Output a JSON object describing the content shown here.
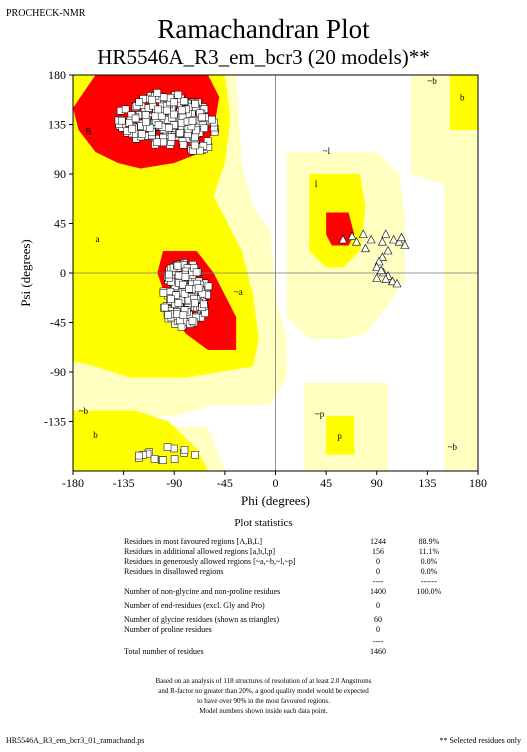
{
  "header_tag": "PROCHECK-NMR",
  "chart_data": {
    "type": "scatter",
    "title": "Ramachandran Plot",
    "subtitle": "HR5546A_R3_em_bcr3 (20 models)**",
    "xlabel": "Phi (degrees)",
    "ylabel": "Psi (degrees)",
    "xlim": [
      -180,
      180
    ],
    "ylim": [
      -180,
      180
    ],
    "xticks": [
      -180,
      -135,
      -90,
      -45,
      0,
      45,
      90,
      135,
      180
    ],
    "yticks": [
      180,
      135,
      90,
      45,
      0,
      -45,
      -90,
      -135
    ],
    "grid": false,
    "colors": {
      "most_favoured": "#ff0000",
      "additional": "#ffff00",
      "generous": "#ffffc0",
      "disallowed": "#ffffff",
      "triangle": "#ffffff"
    },
    "region_labels": [
      {
        "text": "B",
        "x": -169,
        "y": 126
      },
      {
        "text": "~b",
        "x": -60,
        "y": 129
      },
      {
        "text": "~b",
        "x": 135,
        "y": 172
      },
      {
        "text": "b",
        "x": 164,
        "y": 157
      },
      {
        "text": "a",
        "x": -160,
        "y": 28
      },
      {
        "text": "~l",
        "x": 42,
        "y": 108
      },
      {
        "text": "l",
        "x": 35,
        "y": 78
      },
      {
        "text": "~a",
        "x": -37,
        "y": -20
      },
      {
        "text": "~b",
        "x": -175,
        "y": -128
      },
      {
        "text": "b",
        "x": -162,
        "y": -150
      },
      {
        "text": "~p",
        "x": 35,
        "y": -131
      },
      {
        "text": "p",
        "x": 55,
        "y": -151
      },
      {
        "text": "~b",
        "x": 153,
        "y": -161
      }
    ],
    "residue_clusters": [
      {
        "name": "beta",
        "cx": -100,
        "cy": 140,
        "rx": 40,
        "ry": 24,
        "count": 200
      },
      {
        "name": "alpha",
        "cx": -80,
        "cy": -20,
        "rx": 22,
        "ry": 30,
        "count": 180
      },
      {
        "name": "ppII",
        "cx": -70,
        "cy": 128,
        "rx": 18,
        "ry": 18,
        "count": 40
      },
      {
        "name": "lower_beta",
        "cx": -100,
        "cy": -165,
        "rx": 30,
        "ry": 7,
        "count": 14
      }
    ],
    "glycine_points": [
      [
        105,
        30
      ],
      [
        110,
        28
      ],
      [
        98,
        35
      ],
      [
        100,
        20
      ],
      [
        95,
        14
      ],
      [
        92,
        10
      ],
      [
        90,
        5
      ],
      [
        96,
        0
      ],
      [
        100,
        -3
      ],
      [
        104,
        -8
      ],
      [
        108,
        -10
      ],
      [
        90,
        -5
      ],
      [
        112,
        32
      ],
      [
        115,
        25
      ],
      [
        95,
        28
      ],
      [
        60,
        30
      ],
      [
        68,
        33
      ],
      [
        72,
        28
      ],
      [
        78,
        35
      ],
      [
        85,
        30
      ],
      [
        80,
        22
      ],
      [
        94,
        2
      ],
      [
        98,
        -6
      ]
    ]
  },
  "statistics": {
    "title": "Plot statistics",
    "rows": [
      {
        "label": "Residues in most favoured regions  [A,B,L]",
        "value": "1244",
        "pct": "88.9%"
      },
      {
        "label": "Residues in additional allowed regions  [a,b,l,p]",
        "value": "156",
        "pct": "11.1%"
      },
      {
        "label": "Residues in generously allowed regions  [~a,~b,~l,~p]",
        "value": "0",
        "pct": "0.0%"
      },
      {
        "label": "Residues in disallowed regions",
        "value": "0",
        "pct": "0.0%"
      },
      {
        "label": "",
        "value": "----",
        "pct": "------"
      },
      {
        "label": "Number of non-glycine and non-proline residues",
        "value": "1400",
        "pct": "100.0%"
      },
      {
        "label": "Number of end-residues (excl. Gly and Pro)",
        "value": "0",
        "pct": ""
      },
      {
        "label": "Number of glycine residues (shown as triangles)",
        "value": "60",
        "pct": ""
      },
      {
        "label": "Number of proline residues",
        "value": "0",
        "pct": ""
      },
      {
        "label": "",
        "value": "----",
        "pct": ""
      },
      {
        "label": "Total number of residues",
        "value": "1460",
        "pct": ""
      }
    ]
  },
  "note_lines": [
    "Based on an analysis of 118 structures of resolution of at least 2.0 Angstroms",
    "and R-factor no greater than 20%, a good quality model would be expected",
    "to have over 90% in the most favoured regions.",
    "Model numbers shown inside each data point."
  ],
  "footer_left": "HR5546A_R3_em_bcr3_01_ramachand.ps",
  "footer_right": "** Selected residues only"
}
